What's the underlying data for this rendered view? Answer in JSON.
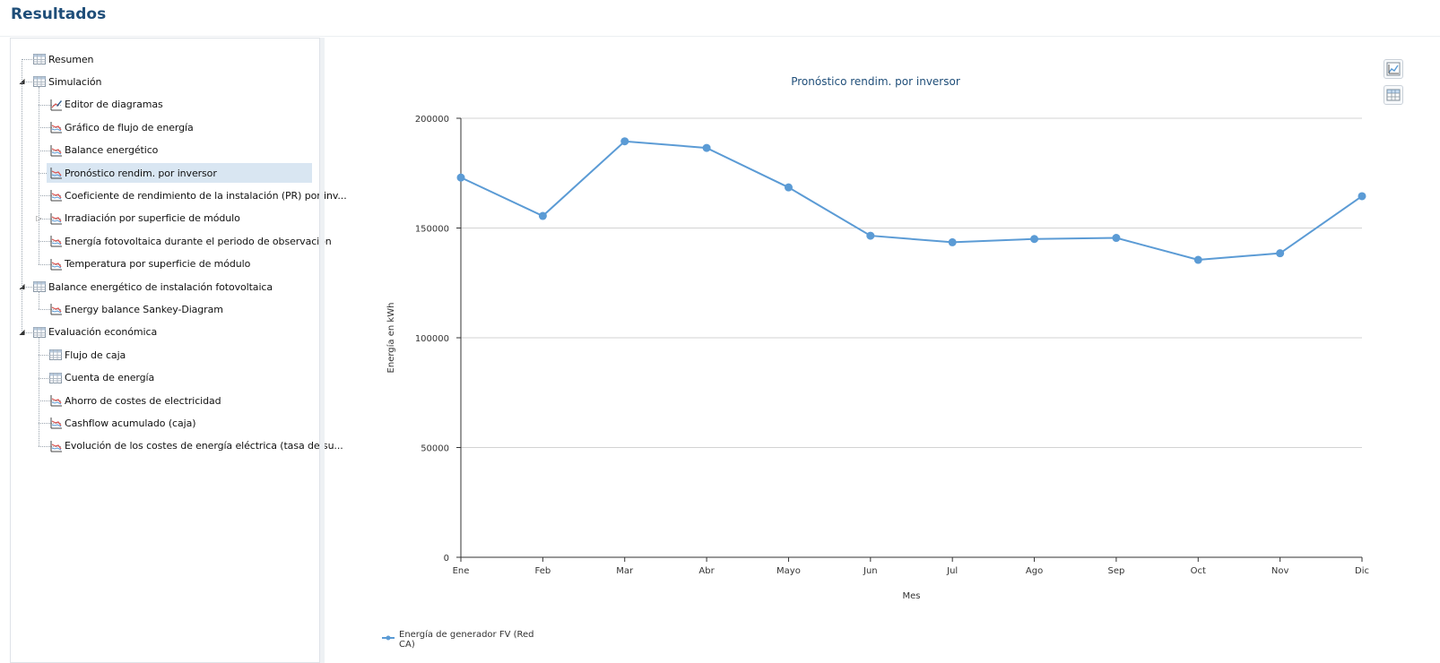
{
  "page": {
    "title": "Resultados"
  },
  "tree": {
    "items": [
      {
        "label": "Resumen",
        "level": 0,
        "icon": "table-icon",
        "toggle": "none"
      },
      {
        "label": "Simulación",
        "level": 0,
        "icon": "table-icon",
        "toggle": "expanded"
      },
      {
        "label": "Editor de diagramas",
        "level": 1,
        "icon": "chart-edit-icon",
        "toggle": "none"
      },
      {
        "label": "Gráfico de flujo de energía",
        "level": 1,
        "icon": "line-chart-icon",
        "toggle": "none"
      },
      {
        "label": "Balance energético",
        "level": 1,
        "icon": "line-chart-icon",
        "toggle": "none"
      },
      {
        "label": "Pronóstico rendim. por inversor",
        "level": 1,
        "icon": "line-chart-icon",
        "toggle": "none",
        "selected": true
      },
      {
        "label": "Coeficiente de rendimiento de la instalación (PR) por inv...",
        "level": 1,
        "icon": "line-chart-icon",
        "toggle": "none"
      },
      {
        "label": "Irradiación por superficie de módulo",
        "level": 1,
        "icon": "line-chart-icon",
        "toggle": "collapsed"
      },
      {
        "label": "Energía fotovoltaica durante el periodo de observación",
        "level": 1,
        "icon": "line-chart-icon",
        "toggle": "none"
      },
      {
        "label": "Temperatura por superficie de módulo",
        "level": 1,
        "icon": "line-chart-icon",
        "toggle": "none"
      },
      {
        "label": "Balance energético de instalación fotovoltaica",
        "level": 0,
        "icon": "table-icon",
        "toggle": "expanded"
      },
      {
        "label": "Energy balance Sankey-Diagram",
        "level": 1,
        "icon": "line-chart-icon",
        "toggle": "none"
      },
      {
        "label": "Evaluación económica",
        "level": 0,
        "icon": "table-icon",
        "toggle": "expanded"
      },
      {
        "label": "Flujo de caja",
        "level": 1,
        "icon": "table-icon",
        "toggle": "none"
      },
      {
        "label": "Cuenta de energía",
        "level": 1,
        "icon": "table-icon",
        "toggle": "none"
      },
      {
        "label": "Ahorro de costes de electricidad",
        "level": 1,
        "icon": "line-chart-icon",
        "toggle": "none"
      },
      {
        "label": "Cashflow acumulado (caja)",
        "level": 1,
        "icon": "line-chart-icon",
        "toggle": "none"
      },
      {
        "label": "Evolución de los costes de energía eléctrica (tasa de su...",
        "level": 1,
        "icon": "line-chart-icon",
        "toggle": "none"
      }
    ]
  },
  "side_buttons": [
    {
      "icon": "chart-view-icon"
    },
    {
      "icon": "table-view-icon"
    }
  ],
  "chart_data": {
    "type": "line",
    "title": "Pronóstico rendim. por inversor",
    "xlabel": "Mes",
    "ylabel": "Energía en kWh",
    "categories": [
      "Ene",
      "Feb",
      "Mar",
      "Abr",
      "Mayo",
      "Jun",
      "Jul",
      "Ago",
      "Sep",
      "Oct",
      "Nov",
      "Dic"
    ],
    "series": [
      {
        "name": "Energía de generador FV (Red CA)",
        "values": [
          173000,
          155500,
          189500,
          186500,
          168500,
          146500,
          143500,
          145000,
          145500,
          135500,
          138500,
          164500
        ]
      }
    ],
    "ylim": [
      0,
      200000
    ],
    "yticks": [
      0,
      50000,
      100000,
      150000,
      200000
    ],
    "ytick_labels": [
      "0",
      "50000",
      "100000",
      "150000",
      "200000"
    ],
    "grid": true,
    "legend": "bottom-left",
    "colors": {
      "series": "#5b9bd5",
      "title": "#1f4e79",
      "grid": "#d3d3d3",
      "axis": "#333333"
    }
  }
}
